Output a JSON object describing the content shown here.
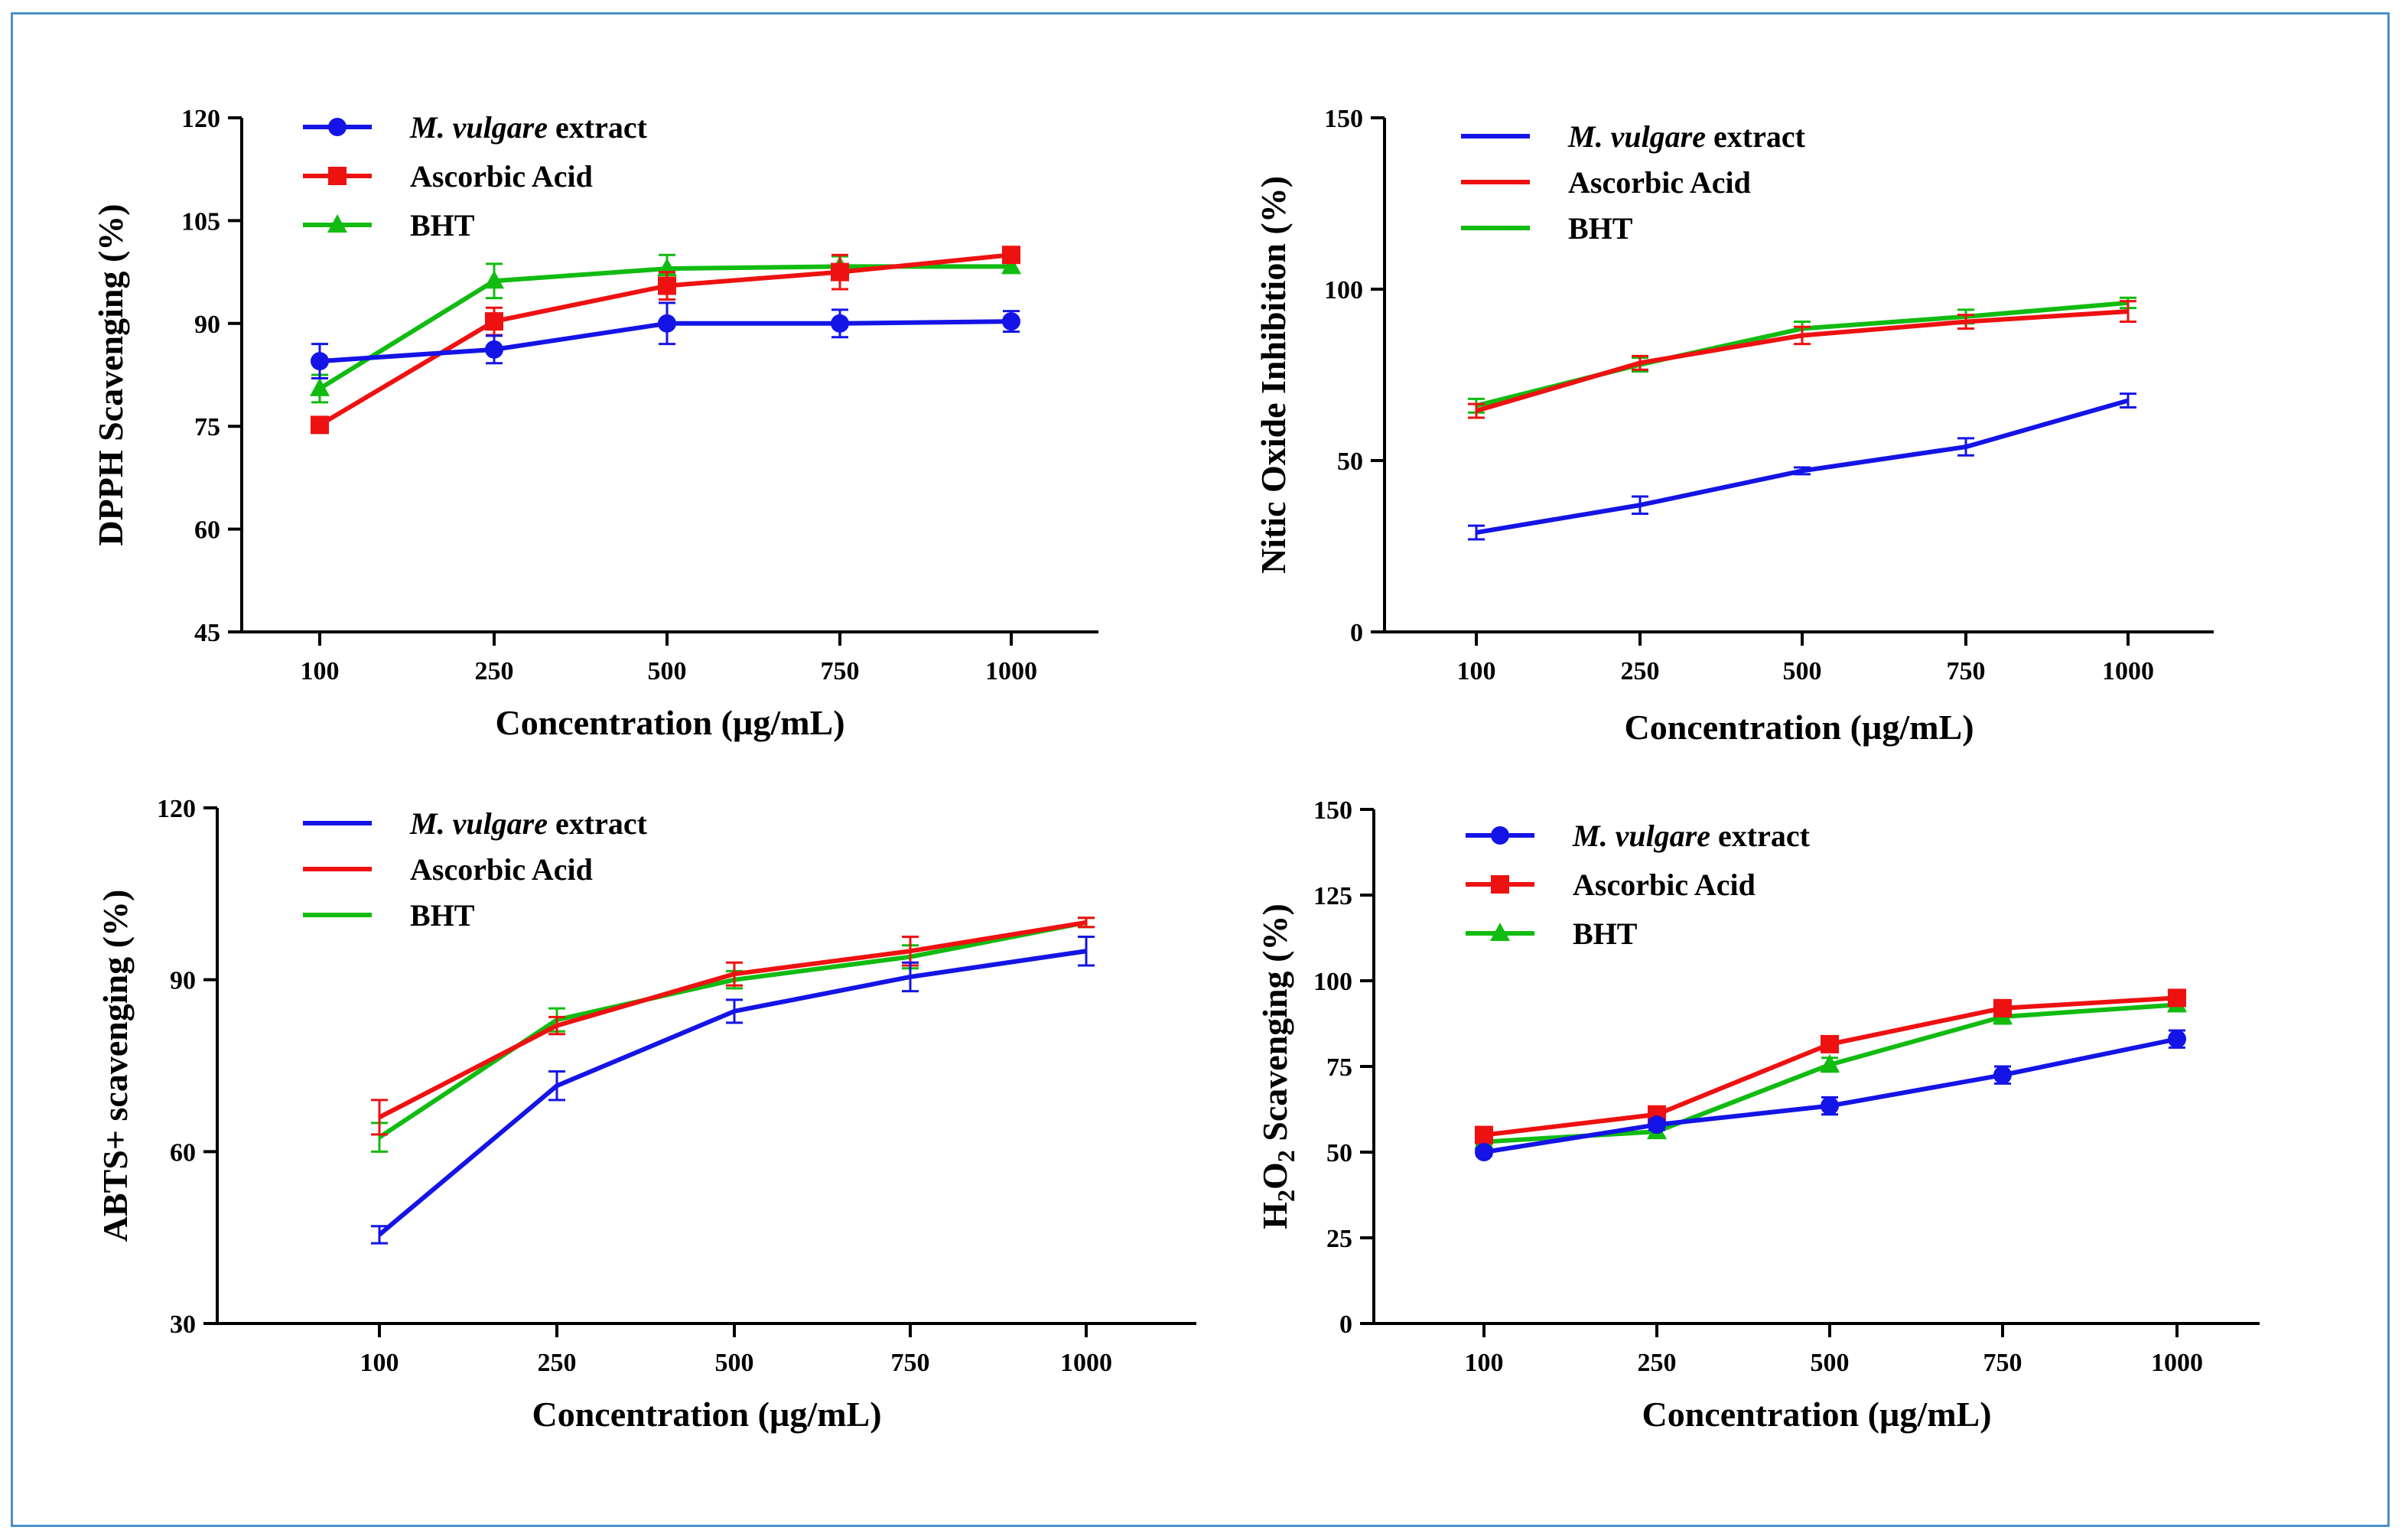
{
  "colors": {
    "extract": "#1414e6",
    "ascorbic": "#ee1111",
    "bht": "#11bb11",
    "axis": "#000000",
    "frame": "#4a90c8"
  },
  "chart_data": [
    {
      "id": "dpph",
      "type": "line",
      "markers": true,
      "xlabel": "Concentration (µg/mL)",
      "ylabel": "DPPH Scavenging (%)",
      "categories": [
        "100",
        "250",
        "500",
        "750",
        "1000"
      ],
      "ylim": [
        45,
        120
      ],
      "yticks": [
        45,
        60,
        75,
        90,
        105,
        120
      ],
      "legend_position": "top-left",
      "series": [
        {
          "key": "extract",
          "name_italic": "M. vulgare",
          "name_rest": " extract",
          "marker": "circle",
          "values": [
            84.5,
            86.2,
            90.0,
            90.0,
            90.3
          ],
          "errors": [
            2.5,
            2.0,
            3.0,
            2.0,
            1.5
          ]
        },
        {
          "key": "ascorbic",
          "name_italic": "",
          "name_rest": "Ascorbic Acid",
          "marker": "square",
          "values": [
            75.2,
            90.3,
            95.5,
            97.5,
            100.0
          ],
          "errors": [
            0.5,
            2.0,
            2.0,
            2.5,
            0.8
          ]
        },
        {
          "key": "bht",
          "name_italic": "",
          "name_rest": "BHT",
          "marker": "triangle",
          "values": [
            80.5,
            96.2,
            98.0,
            98.3,
            98.3
          ],
          "errors": [
            2.0,
            2.5,
            2.0,
            1.5,
            0.8
          ]
        }
      ]
    },
    {
      "id": "no",
      "type": "line",
      "markers": false,
      "xlabel": "Concentration (µg/mL)",
      "ylabel": "Nitic Oxide Inhibition (%)",
      "categories": [
        "100",
        "250",
        "500",
        "750",
        "1000"
      ],
      "ylim": [
        0,
        150
      ],
      "yticks": [
        0,
        50,
        100,
        150
      ],
      "legend_position": "top-left",
      "series": [
        {
          "key": "extract",
          "name_italic": "M. vulgare",
          "name_rest": " extract",
          "values": [
            29.0,
            37.0,
            47.0,
            54.0,
            67.5
          ],
          "errors": [
            2.0,
            2.5,
            1.0,
            2.5,
            2.0
          ]
        },
        {
          "key": "ascorbic",
          "name_italic": "",
          "name_rest": "Ascorbic Acid",
          "values": [
            64.5,
            78.5,
            86.5,
            90.5,
            93.5
          ],
          "errors": [
            2.0,
            2.0,
            2.5,
            2.0,
            3.0
          ]
        },
        {
          "key": "bht",
          "name_italic": "",
          "name_rest": "BHT",
          "values": [
            66.0,
            78.0,
            88.5,
            92.0,
            96.0
          ],
          "errors": [
            2.0,
            2.0,
            2.0,
            2.0,
            1.5
          ]
        }
      ]
    },
    {
      "id": "abts",
      "type": "line",
      "markers": false,
      "xlabel": "Concentration (µg/mL)",
      "ylabel": "ABTS+ scavenging (%)",
      "categories": [
        "100",
        "250",
        "500",
        "750",
        "1000"
      ],
      "ylim": [
        30,
        120
      ],
      "yticks": [
        30,
        60,
        90,
        120
      ],
      "legend_position": "top-left",
      "series": [
        {
          "key": "extract",
          "name_italic": "M. vulgare",
          "name_rest": " extract",
          "values": [
            45.5,
            71.5,
            84.5,
            90.5,
            95.0
          ],
          "errors": [
            1.5,
            2.5,
            2.0,
            2.5,
            2.5
          ]
        },
        {
          "key": "ascorbic",
          "name_italic": "",
          "name_rest": "Ascorbic Acid",
          "values": [
            66.0,
            82.0,
            91.0,
            95.0,
            100.0
          ],
          "errors": [
            3.0,
            1.5,
            2.0,
            2.5,
            0.8
          ]
        },
        {
          "key": "bht",
          "name_italic": "",
          "name_rest": "BHT",
          "values": [
            62.5,
            83.0,
            90.0,
            94.0,
            100.0
          ],
          "errors": [
            2.5,
            2.0,
            1.5,
            2.0,
            0.8
          ]
        }
      ]
    },
    {
      "id": "h2o2",
      "type": "line",
      "markers": true,
      "xlabel": "Concentration (µg/mL)",
      "ylabel_parts": [
        "H",
        "2",
        "O",
        "2",
        " Scavenging (%)"
      ],
      "categories": [
        "100",
        "250",
        "500",
        "750",
        "1000"
      ],
      "ylim": [
        0,
        150
      ],
      "yticks": [
        0,
        25,
        50,
        75,
        100,
        125,
        150
      ],
      "legend_position": "top-left",
      "series": [
        {
          "key": "extract",
          "name_italic": "M. vulgare",
          "name_rest": " extract",
          "marker": "circle",
          "values": [
            50.0,
            58.0,
            63.5,
            72.5,
            83.0
          ],
          "errors": [
            1.0,
            1.5,
            2.5,
            2.5,
            2.5
          ]
        },
        {
          "key": "ascorbic",
          "name_italic": "",
          "name_rest": "Ascorbic Acid",
          "marker": "square",
          "values": [
            55.0,
            61.0,
            81.5,
            92.0,
            95.0
          ],
          "errors": [
            1.0,
            1.5,
            2.0,
            1.5,
            1.5
          ]
        },
        {
          "key": "bht",
          "name_italic": "",
          "name_rest": "BHT",
          "marker": "triangle",
          "values": [
            53.0,
            56.0,
            75.5,
            89.5,
            93.0
          ],
          "errors": [
            1.0,
            1.5,
            2.0,
            2.0,
            1.5
          ]
        }
      ]
    }
  ]
}
